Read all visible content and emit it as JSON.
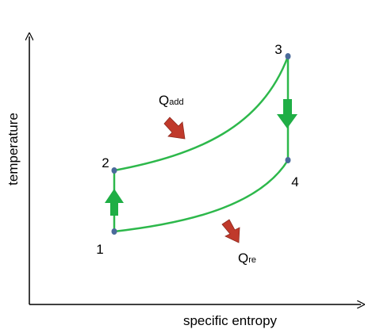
{
  "axes": {
    "x_label": "specific entropy",
    "y_label": "temperature"
  },
  "nodes": [
    {
      "label": "1"
    },
    {
      "label": "2"
    },
    {
      "label": "3"
    },
    {
      "label": "4"
    }
  ],
  "heat": {
    "added": {
      "symbol": "Q",
      "subscript": "add"
    },
    "rejected": {
      "symbol": "Q",
      "subscript": "re"
    }
  }
}
